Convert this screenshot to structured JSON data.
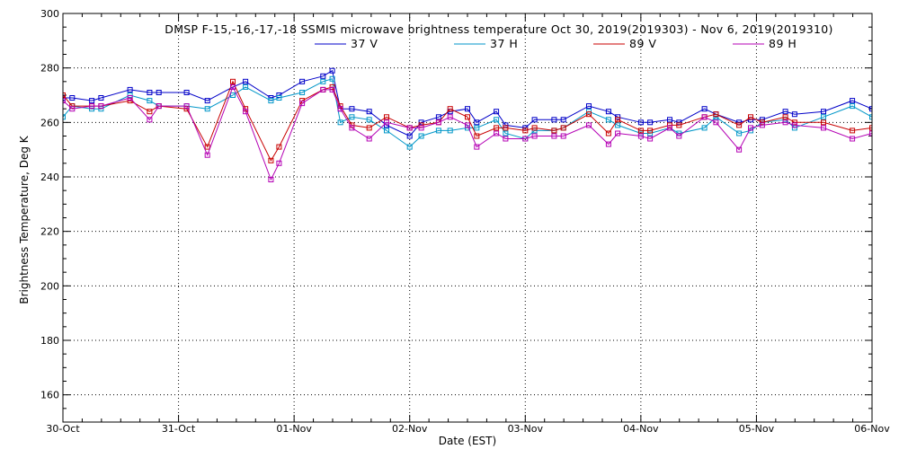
{
  "chart_data": {
    "type": "line",
    "title": "DMSP F-15,-16,-17,-18 SSMIS microwave brightness temperature Oct 30, 2019(2019303) - Nov  6, 2019(2019310)",
    "xlabel": "Date (EST)",
    "ylabel": "Brightness Temperature, Deg K",
    "xlim": [
      0,
      7
    ],
    "ylim": [
      150,
      300
    ],
    "x_ticks": [
      {
        "value": 0,
        "label": "30-Oct"
      },
      {
        "value": 1,
        "label": "31-Oct"
      },
      {
        "value": 2,
        "label": "01-Nov"
      },
      {
        "value": 3,
        "label": "02-Nov"
      },
      {
        "value": 4,
        "label": "03-Nov"
      },
      {
        "value": 5,
        "label": "04-Nov"
      },
      {
        "value": 6,
        "label": "05-Nov"
      },
      {
        "value": 7,
        "label": "06-Nov"
      }
    ],
    "y_ticks": [
      {
        "value": 160,
        "label": "160"
      },
      {
        "value": 180,
        "label": "180"
      },
      {
        "value": 200,
        "label": "200"
      },
      {
        "value": 220,
        "label": "220"
      },
      {
        "value": 240,
        "label": "240"
      },
      {
        "value": 260,
        "label": "260"
      },
      {
        "value": 280,
        "label": "280"
      },
      {
        "value": 300,
        "label": "300"
      }
    ],
    "grid": true,
    "legend_position": "top-center",
    "series": [
      {
        "name": "37 V",
        "color": "#0000c8",
        "x": [
          0,
          0.08,
          0.25,
          0.33,
          0.58,
          0.75,
          0.83,
          1.07,
          1.25,
          1.47,
          1.58,
          1.8,
          1.87,
          2.07,
          2.25,
          2.33,
          2.4,
          2.5,
          2.65,
          2.8,
          3.0,
          3.1,
          3.25,
          3.35,
          3.5,
          3.58,
          3.75,
          3.83,
          4.0,
          4.08,
          4.25,
          4.33,
          4.55,
          4.72,
          4.8,
          5.0,
          5.08,
          5.25,
          5.33,
          5.55,
          5.65,
          5.85,
          5.95,
          6.05,
          6.25,
          6.33,
          6.58,
          6.83,
          7.0
        ],
        "values": [
          269,
          269,
          268,
          269,
          272,
          271,
          271,
          271,
          268,
          273,
          275,
          269,
          270,
          275,
          277,
          279,
          265,
          265,
          264,
          259,
          255,
          260,
          262,
          264,
          265,
          260,
          264,
          259,
          258,
          261,
          261,
          261,
          266,
          264,
          262,
          260,
          260,
          261,
          260,
          265,
          263,
          260,
          261,
          261,
          264,
          263,
          264,
          268,
          265
        ]
      },
      {
        "name": "37 H",
        "color": "#0096c8",
        "x": [
          0,
          0.08,
          0.25,
          0.33,
          0.58,
          0.75,
          0.83,
          1.07,
          1.25,
          1.47,
          1.58,
          1.8,
          1.87,
          2.07,
          2.25,
          2.33,
          2.4,
          2.5,
          2.65,
          2.8,
          3.0,
          3.1,
          3.25,
          3.35,
          3.5,
          3.58,
          3.75,
          3.83,
          4.0,
          4.08,
          4.25,
          4.33,
          4.55,
          4.72,
          4.8,
          5.0,
          5.08,
          5.25,
          5.33,
          5.55,
          5.65,
          5.85,
          5.95,
          6.05,
          6.25,
          6.33,
          6.58,
          6.83,
          7.0
        ],
        "values": [
          262,
          266,
          265,
          265,
          270,
          268,
          266,
          266,
          265,
          270,
          273,
          268,
          269,
          271,
          275,
          276,
          260,
          262,
          261,
          257,
          251,
          255,
          257,
          257,
          258,
          258,
          261,
          256,
          254,
          257,
          257,
          258,
          264,
          261,
          259,
          256,
          256,
          258,
          256,
          258,
          262,
          256,
          257,
          260,
          261,
          258,
          262,
          266,
          262
        ]
      },
      {
        "name": "89 V",
        "color": "#c80000",
        "x": [
          0,
          0.08,
          0.25,
          0.33,
          0.58,
          0.75,
          0.83,
          1.07,
          1.25,
          1.47,
          1.58,
          1.8,
          1.87,
          2.07,
          2.25,
          2.33,
          2.4,
          2.5,
          2.65,
          2.8,
          3.0,
          3.1,
          3.25,
          3.35,
          3.5,
          3.58,
          3.75,
          3.83,
          4.0,
          4.08,
          4.25,
          4.33,
          4.55,
          4.72,
          4.8,
          5.0,
          5.08,
          5.25,
          5.33,
          5.55,
          5.65,
          5.85,
          5.95,
          6.05,
          6.25,
          6.33,
          6.58,
          6.83,
          7.0
        ],
        "values": [
          270,
          266,
          266,
          266,
          268,
          264,
          266,
          265,
          251,
          275,
          265,
          246,
          251,
          268,
          272,
          273,
          266,
          259,
          258,
          262,
          258,
          259,
          260,
          265,
          262,
          255,
          258,
          258,
          257,
          258,
          257,
          258,
          263,
          256,
          261,
          257,
          257,
          259,
          259,
          262,
          263,
          259,
          262,
          260,
          262,
          260,
          260,
          257,
          258
        ]
      },
      {
        "name": "89 H",
        "color": "#b400b4",
        "x": [
          0,
          0.08,
          0.25,
          0.33,
          0.58,
          0.75,
          0.83,
          1.07,
          1.25,
          1.47,
          1.58,
          1.8,
          1.87,
          2.07,
          2.25,
          2.33,
          2.4,
          2.5,
          2.65,
          2.8,
          3.0,
          3.1,
          3.25,
          3.35,
          3.5,
          3.58,
          3.75,
          3.83,
          4.0,
          4.08,
          4.25,
          4.33,
          4.55,
          4.72,
          4.8,
          5.0,
          5.08,
          5.25,
          5.33,
          5.55,
          5.65,
          5.85,
          5.95,
          6.05,
          6.25,
          6.33,
          6.58,
          6.83,
          7.0
        ],
        "values": [
          268,
          265,
          266,
          266,
          269,
          261,
          266,
          266,
          248,
          273,
          264,
          239,
          245,
          267,
          272,
          272,
          265,
          258,
          254,
          260,
          258,
          258,
          260,
          262,
          259,
          251,
          256,
          254,
          254,
          255,
          255,
          255,
          259,
          252,
          256,
          255,
          254,
          258,
          255,
          262,
          260,
          250,
          258,
          259,
          260,
          259,
          258,
          254,
          256
        ]
      }
    ]
  }
}
